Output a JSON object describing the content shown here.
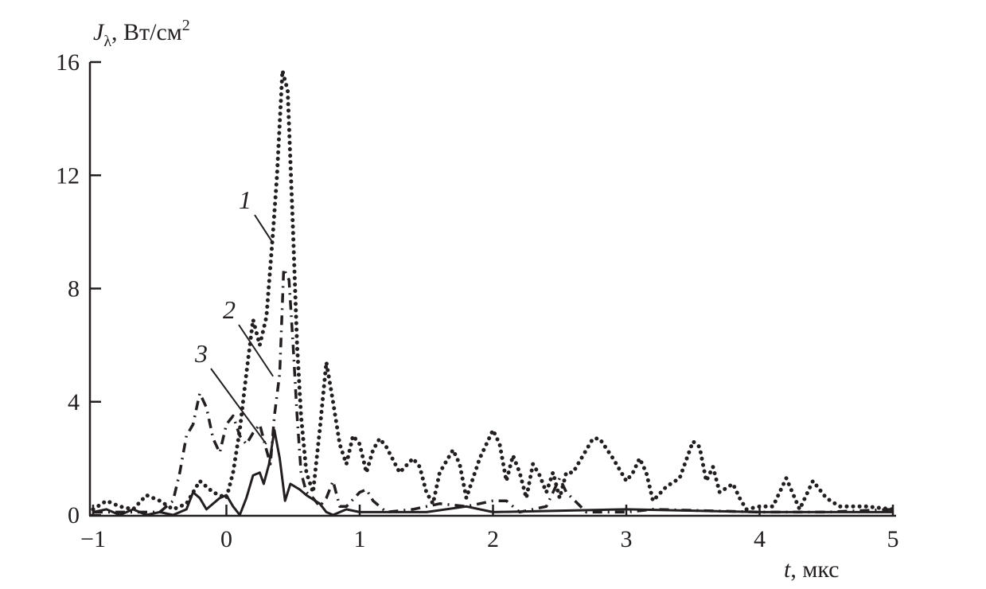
{
  "chart_data": {
    "type": "line",
    "ylabel": {
      "symbol": "J",
      "subscript": "λ",
      "unit": ", Вт/см",
      "sup": "2"
    },
    "xlabel": {
      "symbol": "t",
      "unit": ", мкс"
    },
    "xlim": [
      -1,
      5
    ],
    "ylim": [
      0,
      16
    ],
    "xticks": [
      -1,
      0,
      1,
      2,
      3,
      4,
      5
    ],
    "xtick_labels": [
      "−1",
      "0",
      "1",
      "2",
      "3",
      "4",
      "5"
    ],
    "yticks": [
      0,
      4,
      8,
      12,
      16
    ],
    "ytick_labels": [
      "0",
      "4",
      "8",
      "12",
      "16"
    ],
    "grid": false,
    "legend": "none",
    "series": [
      {
        "label": "1",
        "style": "dotted",
        "color": "#231f20",
        "x": [
          -1,
          -0.9,
          -0.8,
          -0.7,
          -0.6,
          -0.5,
          -0.4,
          -0.3,
          -0.2,
          -0.1,
          0,
          0.05,
          0.1,
          0.15,
          0.2,
          0.25,
          0.3,
          0.35,
          0.38,
          0.42,
          0.46,
          0.5,
          0.53,
          0.56,
          0.6,
          0.65,
          0.7,
          0.75,
          0.8,
          0.85,
          0.9,
          0.95,
          1.0,
          1.05,
          1.1,
          1.15,
          1.2,
          1.3,
          1.4,
          1.45,
          1.5,
          1.55,
          1.6,
          1.7,
          1.75,
          1.8,
          1.9,
          2.0,
          2.05,
          2.1,
          2.15,
          2.2,
          2.25,
          2.3,
          2.35,
          2.4,
          2.45,
          2.5,
          2.55,
          2.6,
          2.7,
          2.75,
          2.8,
          2.9,
          3.0,
          3.05,
          3.1,
          3.15,
          3.2,
          3.3,
          3.4,
          3.5,
          3.55,
          3.6,
          3.65,
          3.7,
          3.8,
          3.85,
          3.9,
          4.0,
          4.1,
          4.2,
          4.3,
          4.4,
          4.5,
          4.6,
          4.8,
          5.0
        ],
        "y": [
          0.2,
          0.5,
          0.3,
          0.2,
          0.7,
          0.5,
          0.2,
          0.4,
          1.2,
          0.8,
          0.6,
          1.5,
          3,
          5,
          6.9,
          6,
          7,
          10,
          12,
          15.7,
          15,
          10,
          6,
          3.5,
          1.5,
          0.8,
          3,
          5.4,
          4,
          2.5,
          1.8,
          2.8,
          2.5,
          1.5,
          2.3,
          2.7,
          2.4,
          1.5,
          2,
          1.7,
          0.8,
          0.4,
          1.5,
          2.3,
          1.8,
          0.6,
          2,
          3,
          2.5,
          1.2,
          2.1,
          1.5,
          0.6,
          1.8,
          1.4,
          0.8,
          1.5,
          0.6,
          1.5,
          1.5,
          2.3,
          2.7,
          2.7,
          2,
          1.2,
          1.5,
          2,
          1.5,
          0.5,
          1.0,
          1.3,
          2.6,
          2.4,
          1.2,
          1.7,
          0.8,
          1.1,
          0.6,
          0.2,
          0.3,
          0.3,
          1.3,
          0.2,
          1.2,
          0.6,
          0.3,
          0.3,
          0.2
        ]
      },
      {
        "label": "2",
        "style": "dash-dot",
        "color": "#231f20",
        "x": [
          -1,
          -0.8,
          -0.6,
          -0.5,
          -0.4,
          -0.35,
          -0.3,
          -0.25,
          -0.2,
          -0.15,
          -0.1,
          -0.05,
          0,
          0.05,
          0.1,
          0.15,
          0.2,
          0.25,
          0.3,
          0.33,
          0.36,
          0.4,
          0.43,
          0.47,
          0.5,
          0.53,
          0.56,
          0.6,
          0.65,
          0.7,
          0.75,
          0.8,
          0.85,
          0.9,
          1.0,
          1.05,
          1.1,
          1.2,
          1.4,
          1.6,
          1.8,
          2.0,
          2.1,
          2.2,
          2.4,
          2.5,
          2.55,
          2.7,
          3.0,
          3.2,
          4.0,
          4.5,
          5.0
        ],
        "y": [
          0.1,
          0.1,
          0.1,
          0.1,
          0.5,
          1.5,
          2.8,
          3.2,
          4.3,
          3.8,
          2.7,
          2.2,
          3.2,
          3.5,
          2.8,
          2.5,
          2.9,
          3.2,
          2.3,
          1.8,
          3.5,
          5,
          8.7,
          8.3,
          6,
          3.5,
          1.5,
          0.8,
          0.6,
          0.3,
          0.6,
          1.2,
          0.3,
          0.3,
          0.8,
          0.9,
          0.5,
          0.1,
          0.2,
          0.4,
          0.3,
          0.5,
          0.5,
          0.1,
          0.3,
          1.3,
          0.8,
          0.1,
          0.1,
          0.2,
          0.1,
          0.1,
          0.2
        ]
      },
      {
        "label": "3",
        "style": "solid",
        "color": "#231f20",
        "x": [
          -1,
          -0.9,
          -0.8,
          -0.7,
          -0.6,
          -0.5,
          -0.4,
          -0.3,
          -0.25,
          -0.2,
          -0.15,
          -0.05,
          0,
          0.05,
          0.1,
          0.15,
          0.2,
          0.25,
          0.28,
          0.32,
          0.36,
          0.4,
          0.44,
          0.48,
          0.55,
          0.6,
          0.7,
          0.75,
          0.8,
          0.9,
          1.0,
          1.2,
          1.5,
          1.8,
          2.0,
          3.0,
          4.0,
          5.0
        ],
        "y": [
          0.1,
          0.2,
          0.0,
          0.2,
          0.0,
          0.1,
          0.0,
          0.2,
          0.8,
          0.6,
          0.2,
          0.6,
          0.7,
          0.3,
          0.0,
          0.6,
          1.4,
          1.5,
          1.1,
          1.8,
          3.0,
          2.0,
          0.5,
          1.1,
          0.9,
          0.7,
          0.4,
          0.1,
          0.0,
          0.2,
          0.1,
          0.1,
          0.1,
          0.3,
          0.1,
          0.2,
          0.1,
          0.1
        ]
      }
    ],
    "annotations": [
      {
        "text": "1",
        "points_to": [
          0.35,
          9.6
        ]
      },
      {
        "text": "2",
        "points_to": [
          0.35,
          4.9
        ]
      },
      {
        "text": "3",
        "points_to": [
          0.3,
          2.5
        ]
      }
    ]
  }
}
